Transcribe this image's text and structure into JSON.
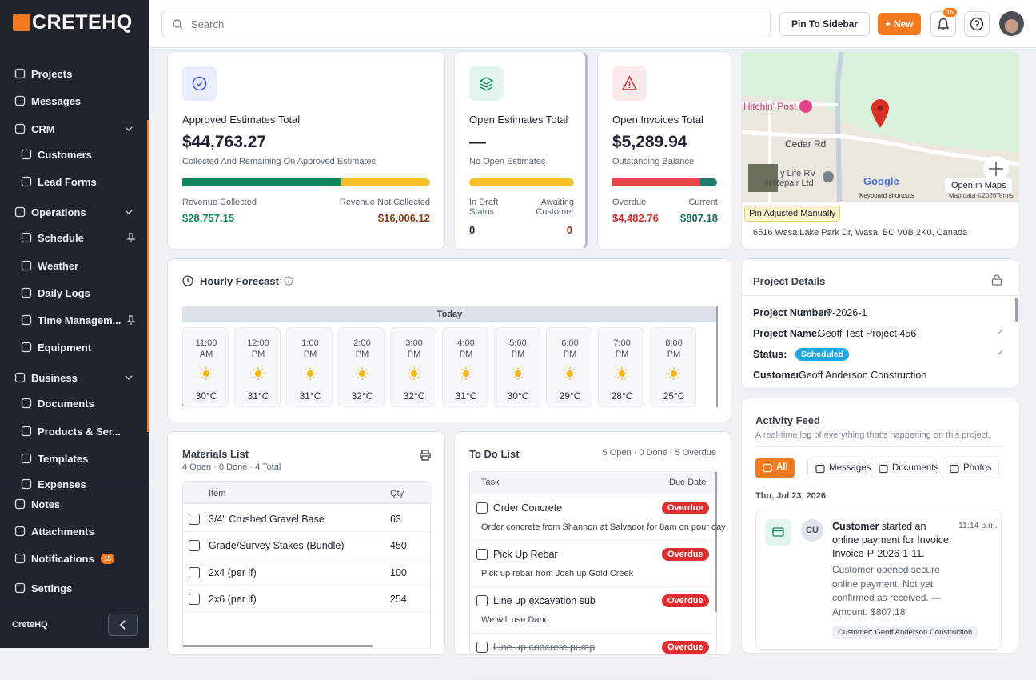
{
  "sidebar": {
    "logo": "CRETEHQ",
    "items": [
      "Projects",
      "Messages",
      "CRM",
      "Customers",
      "Lead Forms",
      "Operations",
      "Schedule",
      "Weather",
      "Daily Logs",
      "Time Managem...",
      "Equipment",
      "Business",
      "Documents",
      "Products & Ser...",
      "Templates",
      "Expenses"
    ],
    "bottom_items": [
      "Notes",
      "Attachments",
      "Notifications",
      "Settings"
    ],
    "notifications_badge": "15",
    "footer": "CreteHQ"
  },
  "topbar": {
    "search": "Search",
    "pin": "Pin To Sidebar",
    "new": "+ New",
    "badge": "15"
  },
  "approved": {
    "title": "Approved Estimates Total",
    "amount": "$44,763.27",
    "subtitle": "Collected And Remaining On Approved Estimates",
    "left_label": "Revenue Collected",
    "right_label": "Revenue Not Collected",
    "left_value": "$28,757.15",
    "right_value": "$16,006.12"
  },
  "open_estimates": {
    "title": "Open Estimates Total",
    "amount": "—",
    "subtitle": "No Open Estimates",
    "left_label": "In Draft Status",
    "right_label": "Awaiting Customer",
    "left_value": "0",
    "right_value": "0"
  },
  "open_invoices": {
    "title": "Open Invoices Total",
    "amount": "$5,289.94",
    "subtitle": "Outstanding Balance",
    "left_label": "Overdue",
    "right_label": "Current",
    "left_value": "$4,482.76",
    "right_value": "$807.18"
  },
  "map": {
    "place": "Hitchin' Post",
    "road": "Cedar Rd",
    "business": "y Life RV",
    "business2": "vi Repair Ltd",
    "google": "Google",
    "shortcuts": "Keyboard shortcuts",
    "mapdata": "Map data ©2026",
    "terms": "Terms",
    "open": "Open in Maps",
    "pin_note": "Pin Adjusted Manually",
    "address": "6516 Wasa Lake Park Dr, Wasa, BC V0B 2K0, Canada"
  },
  "forecast": {
    "title": "Hourly Forecast",
    "day": "Today",
    "hours": [
      {
        "time": "11:00 AM",
        "temp": "30°C"
      },
      {
        "time": "12:00 PM",
        "temp": "31°C"
      },
      {
        "time": "1:00 PM",
        "temp": "31°C"
      },
      {
        "time": "2:00 PM",
        "temp": "32°C"
      },
      {
        "time": "3:00 PM",
        "temp": "32°C"
      },
      {
        "time": "4:00 PM",
        "temp": "31°C"
      },
      {
        "time": "5:00 PM",
        "temp": "30°C"
      },
      {
        "time": "6:00 PM",
        "temp": "29°C"
      },
      {
        "time": "7:00 PM",
        "temp": "28°C"
      },
      {
        "time": "8:00 PM",
        "temp": "25°C"
      }
    ]
  },
  "project_details": {
    "title": "Project Details",
    "rows": [
      {
        "label": "Project Number:",
        "value": "P-2026-1"
      },
      {
        "label": "Project Name:",
        "value": "Geoff Test Project 456"
      },
      {
        "label": "Status:",
        "value": "Scheduled"
      },
      {
        "label": "Customer:",
        "value": "Geoff Anderson Construction"
      }
    ]
  },
  "activity": {
    "title": "Activity Feed",
    "subtitle": "A real-time log of everything that's happening on this project.",
    "tabs": [
      "All",
      "Messages",
      "Documents",
      "Photos"
    ],
    "date": "Thu, Jul 23, 2026",
    "item": {
      "avatar": "CU",
      "actor": "Customer",
      "text": "started an online payment for Invoice Invoice-P-2026-1-11.",
      "time": "11:14 p.m.",
      "detail": "Customer opened secure online payment. Not yet confirmed as received. — Amount: $807.18",
      "tag": "Customer: Geoff Anderson Construction"
    }
  },
  "materials": {
    "title": "Materials List",
    "summary": "4 Open · 0 Done · 4 Total",
    "headers": [
      "Item",
      "Qty"
    ],
    "rows": [
      {
        "item": "3/4\" Crushed Gravel Base",
        "qty": 63
      },
      {
        "item": "Grade/Survey Stakes (Bundle)",
        "qty": 450
      },
      {
        "item": "2x4 (per lf)",
        "qty": 100
      },
      {
        "item": "2x6 (per lf)",
        "qty": 254
      }
    ]
  },
  "todo": {
    "title": "To Do List",
    "summary": "5 Open · 0 Done · 5 Overdue",
    "headers": [
      "Task",
      "Due Date"
    ],
    "items": [
      {
        "task": "Order Concrete",
        "status": "Overdue",
        "note": "Order concrete from Shannon at Salvador for 8am on pour day"
      },
      {
        "task": "Pick Up Rebar",
        "status": "Overdue",
        "note": "Pick up rebar from Josh up Gold Creek"
      },
      {
        "task": "Line up excavation sub",
        "status": "Overdue",
        "note": "We will use Dano"
      },
      {
        "task": "Line up concrete pump",
        "status": "Overdue",
        "note": ""
      }
    ]
  }
}
